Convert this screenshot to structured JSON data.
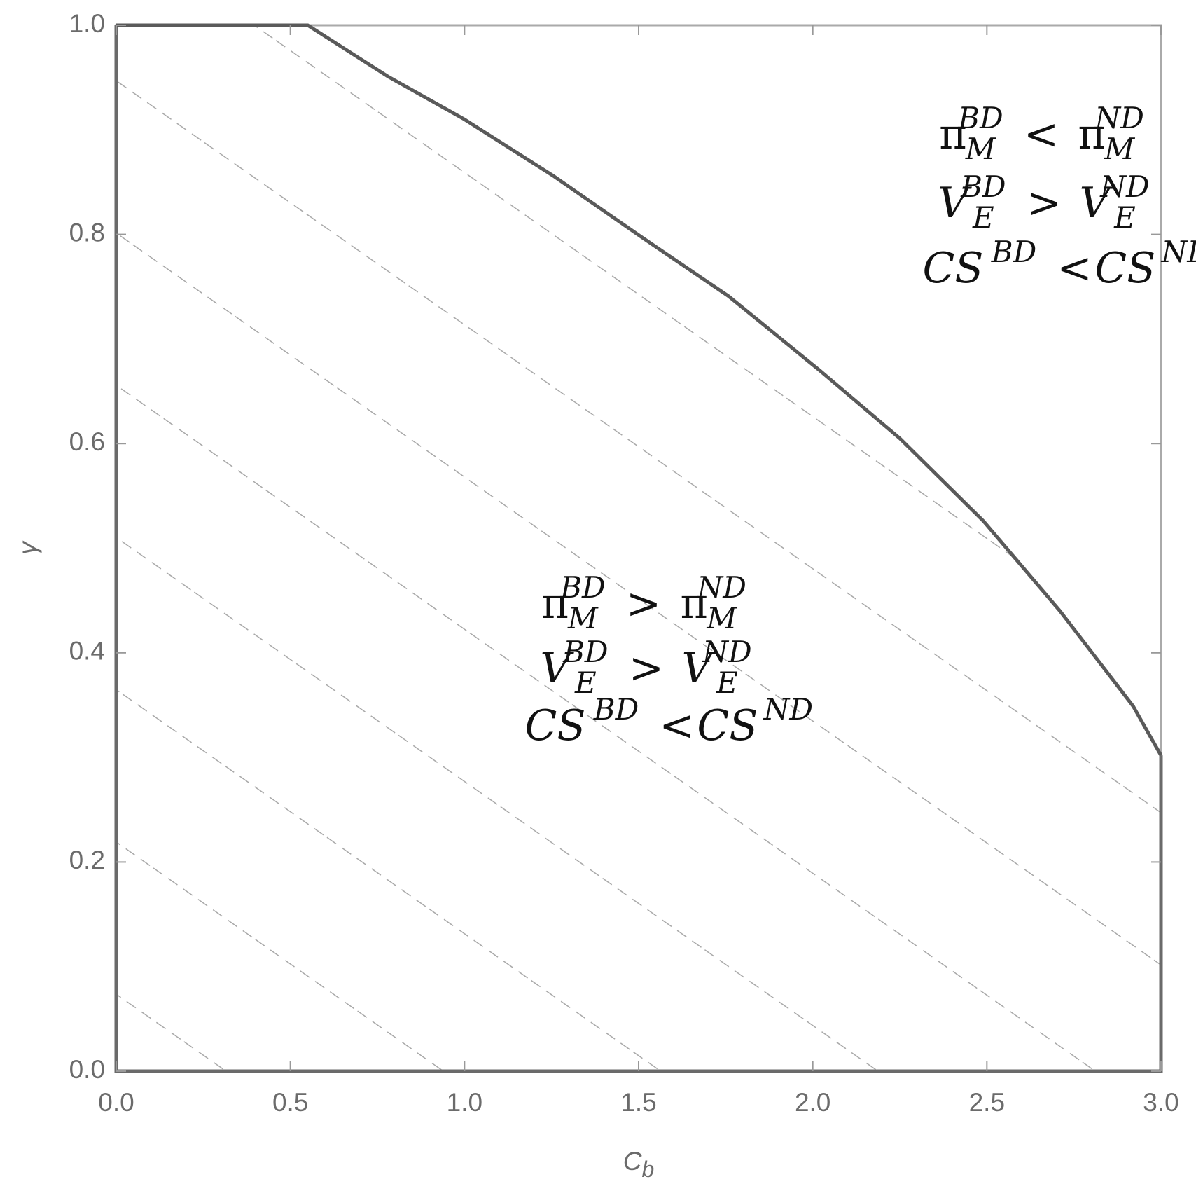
{
  "chart_data": {
    "type": "region",
    "x": [
      0,
      0.55,
      0.78,
      1.0,
      1.255,
      1.506,
      1.758,
      2.02,
      2.25,
      2.49,
      2.71,
      2.92,
      3.0
    ],
    "series": [
      {
        "color": "#5a5a5a",
        "values": [
          1.0,
          1.0,
          0.951,
          0.91,
          0.856,
          0.798,
          0.741,
          0.67,
          0.605,
          0.526,
          0.44,
          0.349,
          0.302
        ]
      }
    ],
    "xlim": [
      0,
      3
    ],
    "ylim": [
      0,
      1
    ],
    "xticks": [
      {
        "value": 0,
        "label": "0.0"
      },
      {
        "value": 0.5,
        "label": "0.5"
      },
      {
        "value": 1,
        "label": "1.0"
      },
      {
        "value": 1.5,
        "label": "1.5"
      },
      {
        "value": 2,
        "label": "2.0"
      },
      {
        "value": 2.5,
        "label": "2.5"
      },
      {
        "value": 3,
        "label": "3.0"
      }
    ],
    "yticks": [
      {
        "value": 0,
        "label": "0.0"
      },
      {
        "value": 0.2,
        "label": "0.2"
      },
      {
        "value": 0.4,
        "label": "0.4"
      },
      {
        "value": 0.6,
        "label": "0.6"
      },
      {
        "value": 0.8,
        "label": "0.8"
      },
      {
        "value": 1,
        "label": "1.0"
      }
    ],
    "x_label": {
      "base": "C",
      "sub": "b"
    },
    "y_label": "γ",
    "hatch": true,
    "annotations": [
      {
        "lines": [
          {
            "left": {
              "base": "π",
              "sub": "M",
              "sup": "BD"
            },
            "relation": "<",
            "right": {
              "base": "π",
              "sub": "M",
              "sup": "ND"
            }
          },
          {
            "left": {
              "base": "V",
              "sub": "E",
              "sup": "BD"
            },
            "relation": ">",
            "right": {
              "base": "V",
              "sub": "E",
              "sup": "ND"
            }
          },
          {
            "left": {
              "base": "CS",
              "sup": "BD"
            },
            "relation": "<",
            "right": {
              "base": "CS",
              "sup": "ND"
            }
          }
        ]
      },
      {
        "lines": [
          {
            "left": {
              "base": "π",
              "sub": "M",
              "sup": "BD"
            },
            "relation": ">",
            "right": {
              "base": "π",
              "sub": "M",
              "sup": "ND"
            }
          },
          {
            "left": {
              "base": "V",
              "sub": "E",
              "sup": "BD"
            },
            "relation": ">",
            "right": {
              "base": "V",
              "sub": "E",
              "sup": "ND"
            }
          },
          {
            "left": {
              "base": "CS",
              "sup": "BD"
            },
            "relation": "<",
            "right": {
              "base": "CS",
              "sup": "ND"
            }
          }
        ]
      }
    ]
  }
}
